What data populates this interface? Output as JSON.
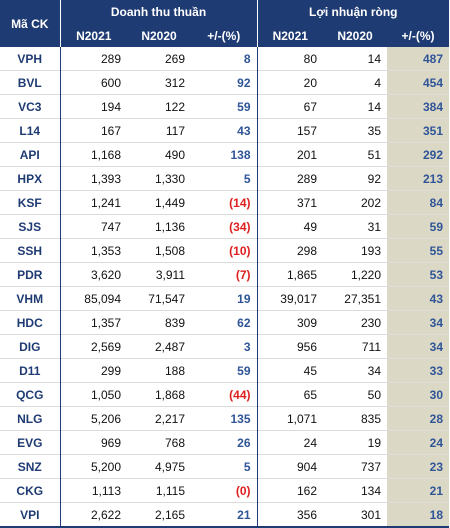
{
  "table": {
    "header_ticker": "Mã CK",
    "group_revenue": "Doanh thu thuần",
    "group_profit": "Lợi nhuận ròng",
    "sub_headers": [
      "N2021",
      "N2020",
      "+/-(%)",
      "N2021",
      "N2020",
      "+/-(%)"
    ],
    "rows": [
      {
        "ticker": "VPH",
        "rev2021": "289",
        "rev2020": "269",
        "rev_chg": "8",
        "rev_neg": false,
        "np2021": "80",
        "np2020": "14",
        "np_chg": "487"
      },
      {
        "ticker": "BVL",
        "rev2021": "600",
        "rev2020": "312",
        "rev_chg": "92",
        "rev_neg": false,
        "np2021": "20",
        "np2020": "4",
        "np_chg": "454"
      },
      {
        "ticker": "VC3",
        "rev2021": "194",
        "rev2020": "122",
        "rev_chg": "59",
        "rev_neg": false,
        "np2021": "67",
        "np2020": "14",
        "np_chg": "384"
      },
      {
        "ticker": "L14",
        "rev2021": "167",
        "rev2020": "117",
        "rev_chg": "43",
        "rev_neg": false,
        "np2021": "157",
        "np2020": "35",
        "np_chg": "351"
      },
      {
        "ticker": "API",
        "rev2021": "1,168",
        "rev2020": "490",
        "rev_chg": "138",
        "rev_neg": false,
        "np2021": "201",
        "np2020": "51",
        "np_chg": "292"
      },
      {
        "ticker": "HPX",
        "rev2021": "1,393",
        "rev2020": "1,330",
        "rev_chg": "5",
        "rev_neg": false,
        "np2021": "289",
        "np2020": "92",
        "np_chg": "213"
      },
      {
        "ticker": "KSF",
        "rev2021": "1,241",
        "rev2020": "1,449",
        "rev_chg": "(14)",
        "rev_neg": true,
        "np2021": "371",
        "np2020": "202",
        "np_chg": "84"
      },
      {
        "ticker": "SJS",
        "rev2021": "747",
        "rev2020": "1,136",
        "rev_chg": "(34)",
        "rev_neg": true,
        "np2021": "49",
        "np2020": "31",
        "np_chg": "59"
      },
      {
        "ticker": "SSH",
        "rev2021": "1,353",
        "rev2020": "1,508",
        "rev_chg": "(10)",
        "rev_neg": true,
        "np2021": "298",
        "np2020": "193",
        "np_chg": "55"
      },
      {
        "ticker": "PDR",
        "rev2021": "3,620",
        "rev2020": "3,911",
        "rev_chg": "(7)",
        "rev_neg": true,
        "np2021": "1,865",
        "np2020": "1,220",
        "np_chg": "53"
      },
      {
        "ticker": "VHM",
        "rev2021": "85,094",
        "rev2020": "71,547",
        "rev_chg": "19",
        "rev_neg": false,
        "np2021": "39,017",
        "np2020": "27,351",
        "np_chg": "43"
      },
      {
        "ticker": "HDC",
        "rev2021": "1,357",
        "rev2020": "839",
        "rev_chg": "62",
        "rev_neg": false,
        "np2021": "309",
        "np2020": "230",
        "np_chg": "34"
      },
      {
        "ticker": "DIG",
        "rev2021": "2,569",
        "rev2020": "2,487",
        "rev_chg": "3",
        "rev_neg": false,
        "np2021": "956",
        "np2020": "711",
        "np_chg": "34"
      },
      {
        "ticker": "D11",
        "rev2021": "299",
        "rev2020": "188",
        "rev_chg": "59",
        "rev_neg": false,
        "np2021": "45",
        "np2020": "34",
        "np_chg": "33"
      },
      {
        "ticker": "QCG",
        "rev2021": "1,050",
        "rev2020": "1,868",
        "rev_chg": "(44)",
        "rev_neg": true,
        "np2021": "65",
        "np2020": "50",
        "np_chg": "30"
      },
      {
        "ticker": "NLG",
        "rev2021": "5,206",
        "rev2020": "2,217",
        "rev_chg": "135",
        "rev_neg": false,
        "np2021": "1,071",
        "np2020": "835",
        "np_chg": "28"
      },
      {
        "ticker": "EVG",
        "rev2021": "969",
        "rev2020": "768",
        "rev_chg": "26",
        "rev_neg": false,
        "np2021": "24",
        "np2020": "19",
        "np_chg": "24"
      },
      {
        "ticker": "SNZ",
        "rev2021": "5,200",
        "rev2020": "4,975",
        "rev_chg": "5",
        "rev_neg": false,
        "np2021": "904",
        "np2020": "737",
        "np_chg": "23"
      },
      {
        "ticker": "CKG",
        "rev2021": "1,113",
        "rev2020": "1,115",
        "rev_chg": "(0)",
        "rev_neg": true,
        "np2021": "162",
        "np2020": "134",
        "np_chg": "21"
      },
      {
        "ticker": "VPI",
        "rev2021": "2,622",
        "rev2020": "2,165",
        "rev_chg": "21",
        "rev_neg": false,
        "np2021": "356",
        "np2020": "301",
        "np_chg": "18"
      }
    ]
  },
  "colors": {
    "header_bg": "#1f3b73",
    "positive_text": "#2f5597",
    "negative_text": "#e02020",
    "highlight_column_bg": "#dcd8c6"
  }
}
